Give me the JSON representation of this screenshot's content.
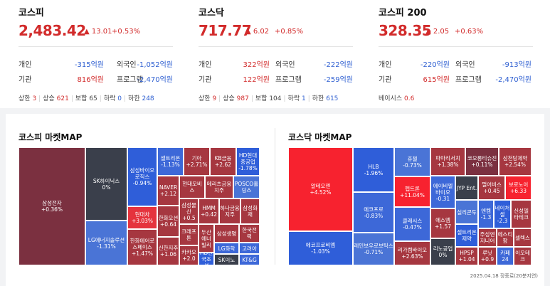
{
  "indices": [
    {
      "name": "코스피",
      "value": "2,483.42",
      "change": "▲ 13.01",
      "percent": "+0.53%",
      "personal_label": "개인",
      "personal": "-315억원",
      "foreign_label": "외국인",
      "foreign": "-1,052억원",
      "inst_label": "기관",
      "inst": "816억원",
      "program_label": "프로그램",
      "program": "-2,470억원",
      "footer": [
        {
          "k": "상한",
          "v": "3"
        },
        {
          "k": "상승",
          "v": "621"
        },
        {
          "k": "보합",
          "v": "65"
        },
        {
          "k": "하락",
          "v": "0"
        },
        {
          "k": "하한",
          "v": "248"
        }
      ]
    },
    {
      "name": "코스닥",
      "value": "717.77",
      "change": "▲ 6.02",
      "percent": "+0.85%",
      "personal_label": "개인",
      "personal": "322억원",
      "foreign_label": "외국인",
      "foreign": "-222억원",
      "inst_label": "기관",
      "inst": "122억원",
      "program_label": "프로그램",
      "program": "-259억원",
      "footer": [
        {
          "k": "상한",
          "v": "9"
        },
        {
          "k": "상승",
          "v": "987"
        },
        {
          "k": "보합",
          "v": "104"
        },
        {
          "k": "하락",
          "v": "1"
        },
        {
          "k": "하한",
          "v": "615"
        }
      ]
    },
    {
      "name": "코스피 200",
      "value": "328.35",
      "change": "▲ 2.05",
      "percent": "+0.63%",
      "personal_label": "개인",
      "personal": "-220억원",
      "foreign_label": "외국인",
      "foreign": "-913억원",
      "inst_label": "기관",
      "inst": "615억원",
      "program_label": "프로그램",
      "program": "-2,470억원",
      "basis_label": "베이시스",
      "basis": "0.6"
    }
  ],
  "kospi_map": {
    "title": "코스피 마켓MAP",
    "tiles": [
      {
        "name": "삼성전자",
        "chg": "+0.36%"
      },
      {
        "name": "SK하이닉스",
        "chg": "0%"
      },
      {
        "name": "LG에너지솔루션",
        "chg": "-1.31%"
      },
      {
        "name": "삼성바이오로직스",
        "chg": "-0.94%"
      },
      {
        "name": "현대차",
        "chg": "+3.03%"
      },
      {
        "name": "한화에어로스페이스",
        "chg": "+1.47%"
      },
      {
        "name": "셀트리온",
        "chg": "-1.13%"
      },
      {
        "name": "기아",
        "chg": "+2.71%"
      },
      {
        "name": "KB금융",
        "chg": "+2.62"
      },
      {
        "name": "HD현대중공업",
        "chg": "-1.78%"
      },
      {
        "name": "NAVER",
        "chg": "+2.12"
      },
      {
        "name": "한화오션",
        "chg": "+0.64"
      },
      {
        "name": "신한지주",
        "chg": "+1.06"
      },
      {
        "name": "현대모비스",
        "chg": ""
      },
      {
        "name": "메리츠금융지주",
        "chg": ""
      },
      {
        "name": "POSCO홀딩스",
        "chg": ""
      },
      {
        "name": "삼성물산",
        "chg": "+0.5"
      },
      {
        "name": "HMM",
        "chg": "+0.42"
      },
      {
        "name": "하나금융지주",
        "chg": ""
      },
      {
        "name": "삼성화재",
        "chg": ""
      },
      {
        "name": "크래프톤",
        "chg": ""
      },
      {
        "name": "두산에너빌리",
        "chg": ""
      },
      {
        "name": "삼성생명",
        "chg": ""
      },
      {
        "name": "한국전력",
        "chg": ""
      },
      {
        "name": "카카오",
        "chg": "+2.0"
      },
      {
        "name": "HD한국조선",
        "chg": ""
      },
      {
        "name": "LG화학",
        "chg": ""
      },
      {
        "name": "고려아",
        "chg": ""
      },
      {
        "name": "SK이노",
        "chg": ""
      },
      {
        "name": "KT&G",
        "chg": ""
      }
    ]
  },
  "kosdaq_map": {
    "title": "코스닥 마켓MAP",
    "tiles": [
      {
        "name": "알테오젠",
        "chg": "+4.52%"
      },
      {
        "name": "에코프로비엠",
        "chg": "-1.03%"
      },
      {
        "name": "HLB",
        "chg": "-1.96%"
      },
      {
        "name": "에코프로",
        "chg": "-0.83%"
      },
      {
        "name": "레인보우로보틱스",
        "chg": "-0.71%"
      },
      {
        "name": "휴젤",
        "chg": "-0.73%"
      },
      {
        "name": "펩트론",
        "chg": "+11.04%"
      },
      {
        "name": "클래시스",
        "chg": "-0.47%"
      },
      {
        "name": "리가켐바이오",
        "chg": "+2.63%"
      },
      {
        "name": "파마리서치",
        "chg": "+1.38%"
      },
      {
        "name": "코오롱티슈진",
        "chg": "+0.11%"
      },
      {
        "name": "삼천당제약",
        "chg": "+2.54%"
      },
      {
        "name": "에이비엘바이오",
        "chg": "-0.31"
      },
      {
        "name": "JYP Ent.",
        "chg": ""
      },
      {
        "name": "펄어비스",
        "chg": "+0.45"
      },
      {
        "name": "보로노이",
        "chg": "+6.33"
      },
      {
        "name": "에스엠",
        "chg": "+1.57"
      },
      {
        "name": "실리콘투",
        "chg": ""
      },
      {
        "name": "엔켐",
        "chg": "-1.3"
      },
      {
        "name": "네이처셀",
        "chg": "-2.3"
      },
      {
        "name": "신성델타테크",
        "chg": ""
      },
      {
        "name": "셀트리온제약",
        "chg": ""
      },
      {
        "name": "주성엔지니어",
        "chg": ""
      },
      {
        "name": "에스티팜",
        "chg": ""
      },
      {
        "name": "셀렉스",
        "chg": ""
      },
      {
        "name": "리노공업",
        "chg": "0%"
      },
      {
        "name": "HPSP",
        "chg": "+1.04"
      },
      {
        "name": "루닛",
        "chg": "+0.9"
      },
      {
        "name": "카페24",
        "chg": ""
      },
      {
        "name": "이오테크",
        "chg": ""
      }
    ]
  },
  "timestamp": "2025.04.18 장종료(20분지연)"
}
